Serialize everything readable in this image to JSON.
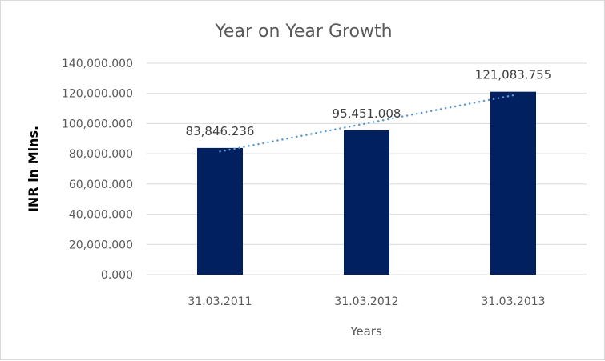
{
  "chart_data": {
    "type": "bar",
    "title": "Year on Year Growth",
    "xlabel": "Years",
    "ylabel": "INR in Mlns.",
    "categories": [
      "31.03.2011",
      "31.03.2012",
      "31.03.2013"
    ],
    "values": [
      83846.236,
      95451.008,
      121083.755
    ],
    "data_labels": [
      "83,846.236",
      "95,451.008",
      "121,083.755"
    ],
    "ylim": [
      0,
      140000
    ],
    "yticks": [
      0,
      20000,
      40000,
      60000,
      80000,
      100000,
      120000,
      140000
    ],
    "ytick_labels": [
      "0.000",
      "20,000.000",
      "40,000.000",
      "60,000.000",
      "80,000.000",
      "100,000.000",
      "120,000.000",
      "140,000.000"
    ],
    "grid": true,
    "trendline": {
      "type": "linear",
      "style": "dotted"
    },
    "colors": {
      "bar": "#002060",
      "trendline": "#5b9bd5",
      "grid": "#d9d9d9"
    }
  }
}
